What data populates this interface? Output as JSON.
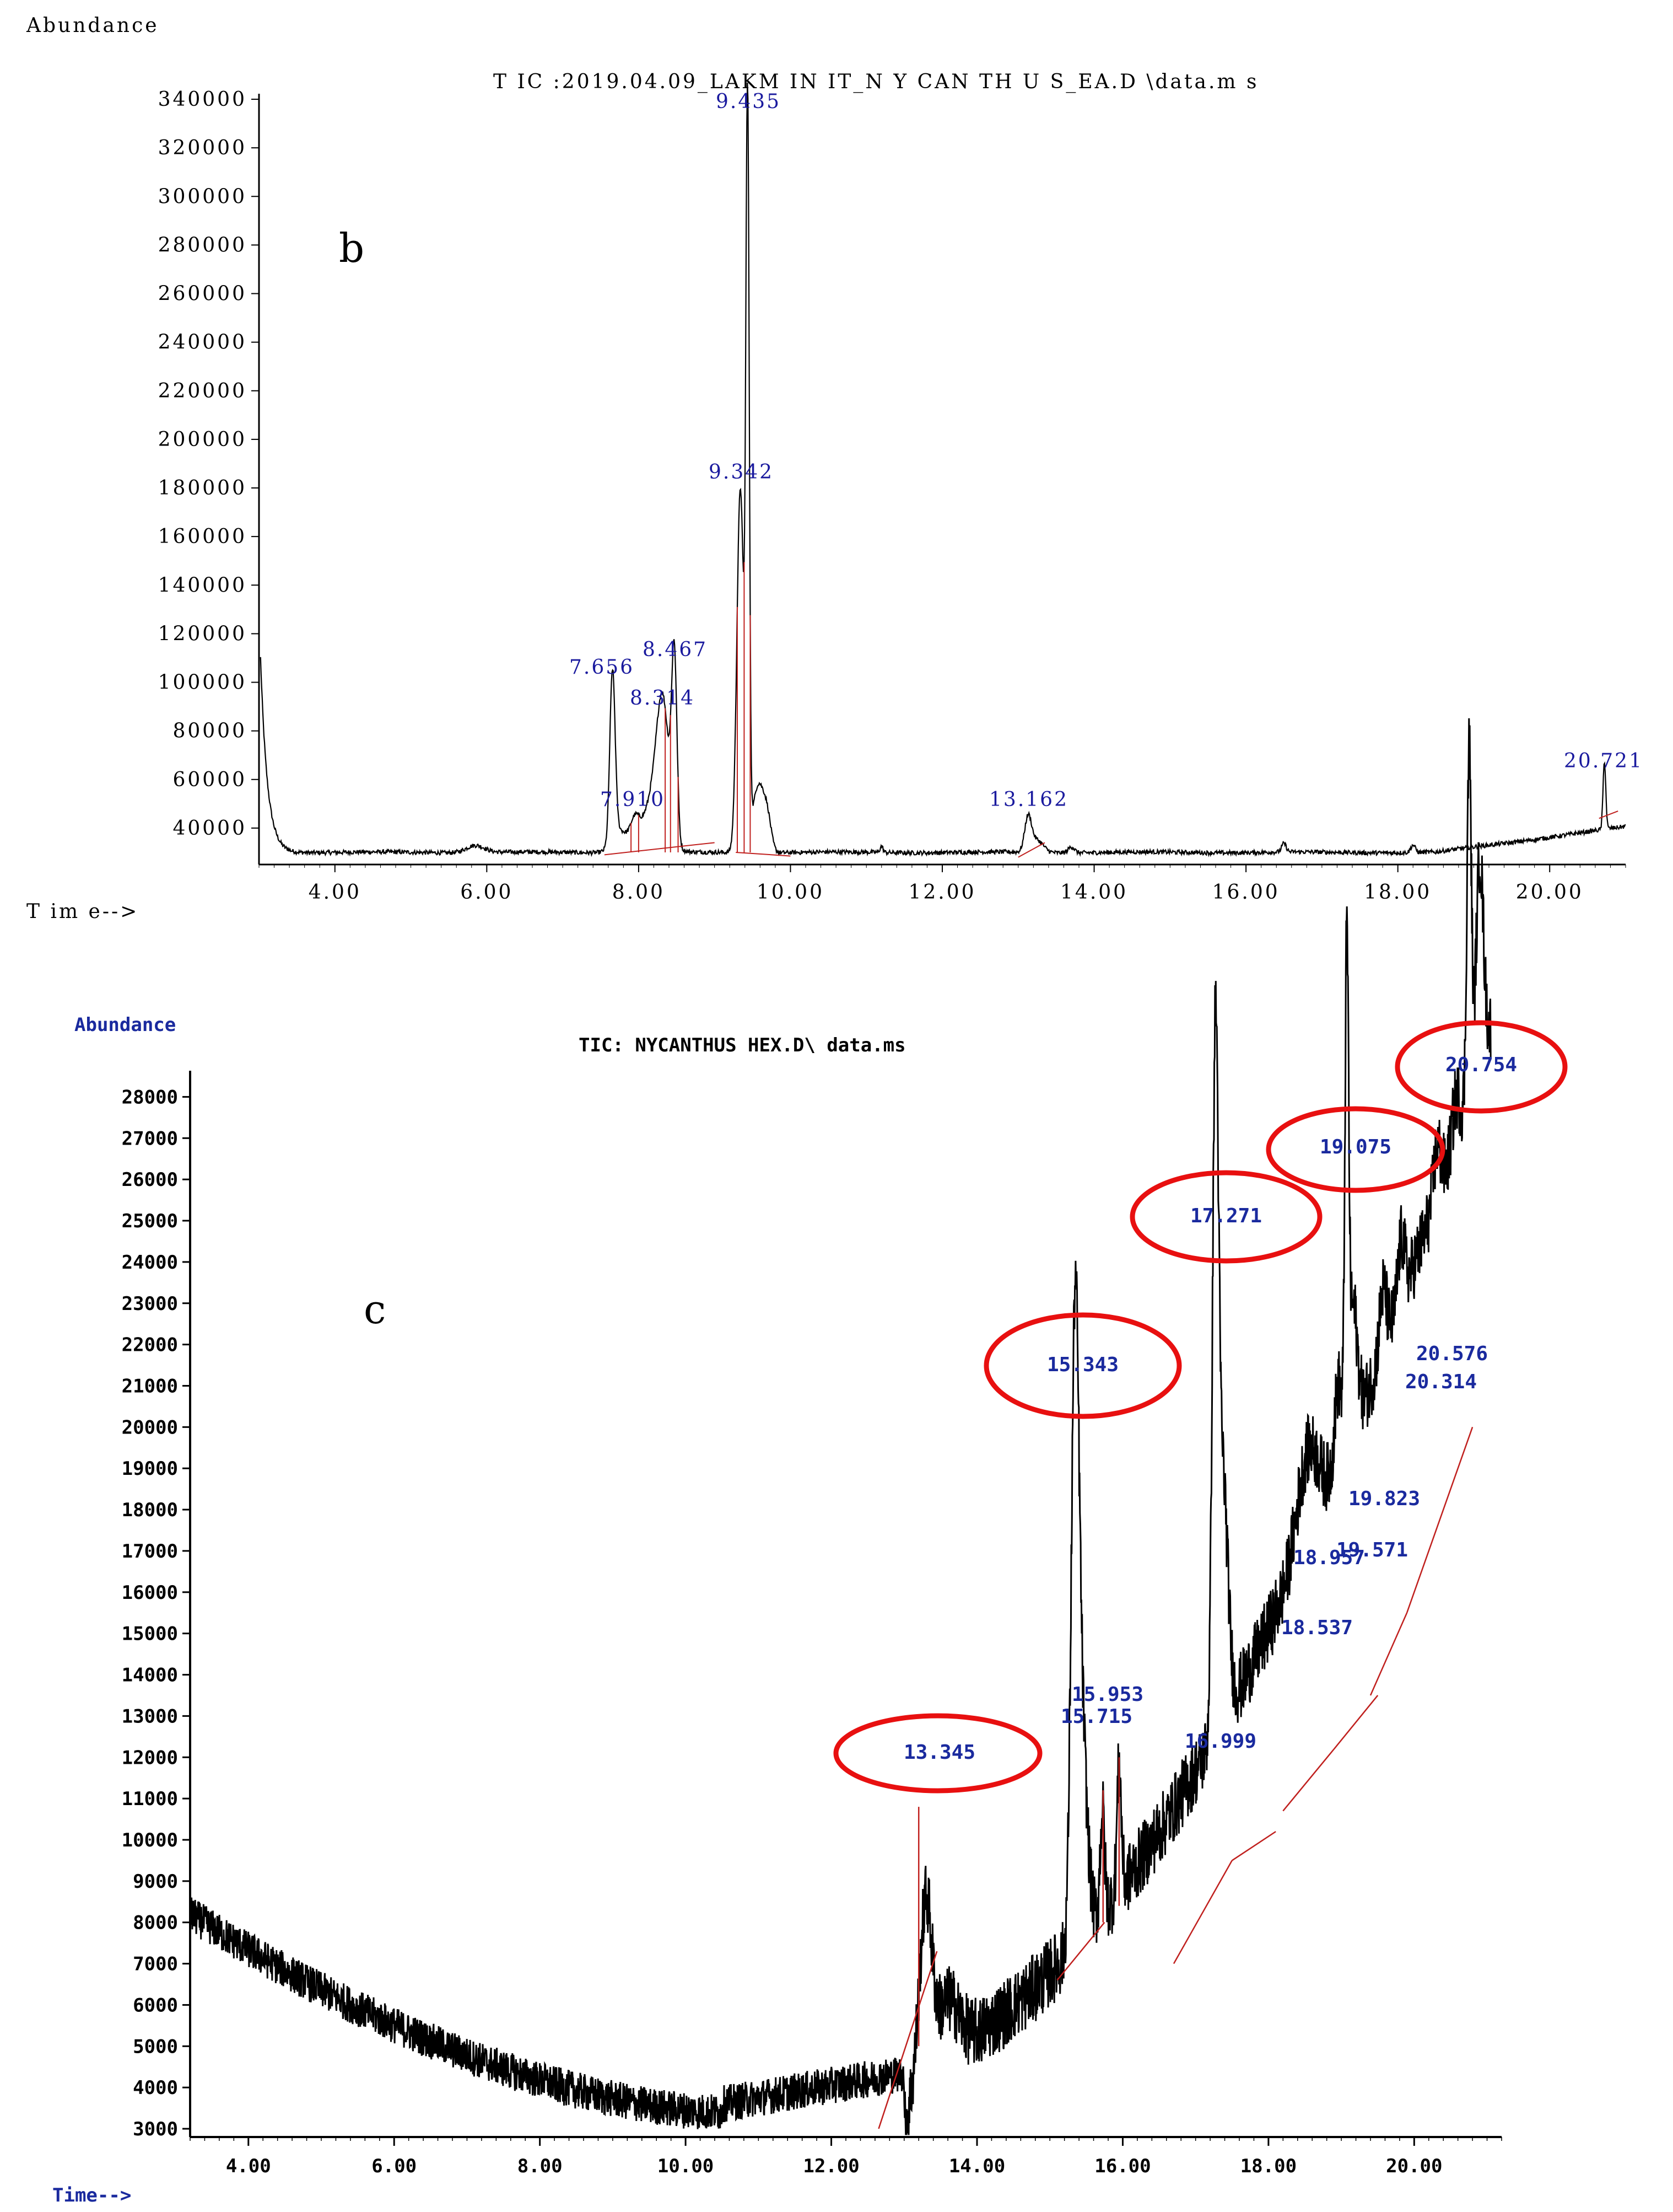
{
  "chart_data": [
    {
      "panel": "b",
      "type": "line",
      "title": "T IC :2019.04.09_LAKM IN IT_N Y CAN TH U S_EA.D \\data.m s",
      "ylabel": "Abundance",
      "xlabel": "T im e-->",
      "xlim": [
        3.0,
        21.0
      ],
      "ylim": [
        25000,
        340000
      ],
      "x_ticks": [
        "4.00",
        "6.00",
        "8.00",
        "10.00",
        "12.00",
        "14.00",
        "16.00",
        "18.00",
        "20.00"
      ],
      "y_ticks": [
        "340000",
        "320000",
        "300000",
        "280000",
        "260000",
        "240000",
        "220000",
        "200000",
        "180000",
        "160000",
        "140000",
        "120000",
        "100000",
        "80000",
        "60000",
        "40000"
      ],
      "baseline": 30000,
      "peaks": [
        {
          "label": "7.656",
          "x": 7.656,
          "y": 100000
        },
        {
          "label": "7.910",
          "x": 7.91,
          "y": 42000
        },
        {
          "label": "8.314",
          "x": 8.314,
          "y": 85000
        },
        {
          "label": "8.467",
          "x": 8.467,
          "y": 108000
        },
        {
          "label": "9.342",
          "x": 9.342,
          "y": 180000
        },
        {
          "label": "9.435",
          "x": 9.435,
          "y": 335000
        },
        {
          "label": "13.162",
          "x": 13.162,
          "y": 45000
        },
        {
          "label": "20.721",
          "x": 20.721,
          "y": 62000
        }
      ]
    },
    {
      "panel": "c",
      "type": "line",
      "title": "TIC: NYCANTHUS HEX.D\\ data.ms",
      "ylabel": "Abundance",
      "xlabel": "Time-->",
      "xlim": [
        3.2,
        21.2
      ],
      "ylim": [
        2800,
        28500
      ],
      "x_ticks": [
        "4.00",
        "6.00",
        "8.00",
        "10.00",
        "12.00",
        "14.00",
        "16.00",
        "18.00",
        "20.00"
      ],
      "y_ticks": [
        "28000",
        "27000",
        "26000",
        "25000",
        "24000",
        "23000",
        "22000",
        "21000",
        "20000",
        "19000",
        "18000",
        "17000",
        "16000",
        "15000",
        "14000",
        "13000",
        "12000",
        "11000",
        "10000",
        "9000",
        "8000",
        "7000",
        "6000",
        "5000",
        "4000",
        "3000"
      ],
      "peaks": [
        {
          "label": "13.345",
          "x": 13.345,
          "y": 11200,
          "circled": true
        },
        {
          "label": "15.343",
          "x": 15.343,
          "y": 20800,
          "circled": true
        },
        {
          "label": "15.715",
          "x": 15.715,
          "y": 12000,
          "circled": false
        },
        {
          "label": "15.953",
          "x": 15.953,
          "y": 12600,
          "circled": false
        },
        {
          "label": "16.999",
          "x": 16.999,
          "y": 11000,
          "circled": false
        },
        {
          "label": "17.271",
          "x": 17.271,
          "y": 24700,
          "circled": true
        },
        {
          "label": "18.537",
          "x": 18.537,
          "y": 14400,
          "circled": false
        },
        {
          "label": "18.957",
          "x": 18.957,
          "y": 16400,
          "circled": false
        },
        {
          "label": "19.075",
          "x": 19.075,
          "y": 26200,
          "circled": true
        },
        {
          "label": "19.571",
          "x": 19.571,
          "y": 16500,
          "circled": false
        },
        {
          "label": "19.823",
          "x": 19.823,
          "y": 17500,
          "circled": false
        },
        {
          "label": "20.314",
          "x": 20.314,
          "y": 20000,
          "circled": false
        },
        {
          "label": "20.576",
          "x": 20.576,
          "y": 21000,
          "circled": false
        },
        {
          "label": "20.754",
          "x": 20.754,
          "y": 28200,
          "circled": true
        }
      ]
    }
  ]
}
